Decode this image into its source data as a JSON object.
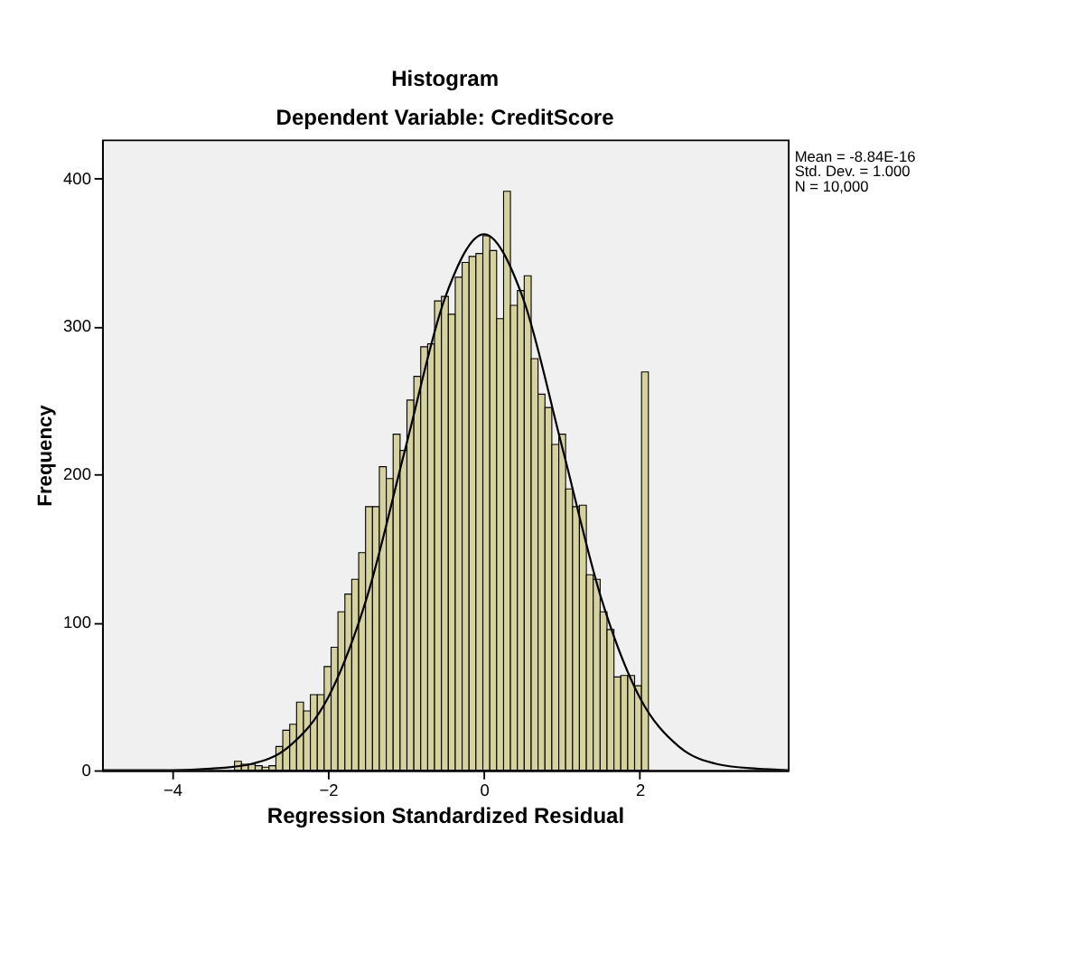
{
  "chart_data": {
    "type": "histogram",
    "title": "Histogram",
    "subtitle": "Dependent Variable: CreditScore",
    "xlabel": "Regression Standardized Residual",
    "ylabel": "Frequency",
    "bins": [
      -3.2,
      -3.112,
      -3.023,
      -2.935,
      -2.846,
      -2.758,
      -2.669,
      -2.581,
      -2.492,
      -2.404,
      -2.315,
      -2.227,
      -2.138,
      -2.05,
      -1.961,
      -1.873,
      -1.784,
      -1.696,
      -1.607,
      -1.519,
      -1.43,
      -1.342,
      -1.253,
      -1.165,
      -1.076,
      -0.988,
      -0.899,
      -0.811,
      -0.722,
      -0.634,
      -0.545,
      -0.457,
      -0.368,
      -0.28,
      -0.191,
      -0.103,
      -0.014,
      0.075,
      0.163,
      0.252,
      0.34,
      0.429,
      0.517,
      0.606,
      0.694,
      0.783,
      0.871,
      0.96,
      1.048,
      1.137,
      1.225,
      1.314,
      1.402,
      1.491,
      1.579,
      1.668,
      1.756,
      1.845,
      1.933,
      2.022,
      2.11
    ],
    "values": [
      6,
      4,
      4,
      3,
      2,
      3,
      16,
      27,
      31,
      46,
      40,
      51,
      51,
      70,
      83,
      107,
      119,
      129,
      147,
      178,
      178,
      205,
      197,
      227,
      216,
      250,
      266,
      286,
      288,
      317,
      320,
      308,
      333,
      343,
      347,
      349,
      361,
      351,
      305,
      391,
      314,
      324,
      334,
      278,
      254,
      245,
      220,
      227,
      190,
      178,
      179,
      132,
      129,
      107,
      95,
      63,
      64,
      64,
      57,
      269
    ],
    "color": "#d6d29c",
    "series": [
      {
        "type": "line",
        "color": "#000000",
        "x": [
          -4.9,
          -4,
          -3.5,
          -3,
          -2.5,
          -2,
          -1.5,
          -1,
          -0.5,
          0,
          0.5,
          1,
          1.5,
          2,
          2.5,
          3,
          3.5,
          3.9
        ],
        "values": [
          0,
          0,
          1,
          4,
          16,
          49,
          117,
          219,
          319,
          362,
          319,
          219,
          117,
          49,
          16,
          4,
          1,
          0
        ]
      }
    ],
    "xlim": [
      -4.9,
      3.9
    ],
    "xticks": [
      -4,
      -2,
      0,
      2
    ],
    "ylim": [
      0,
      426
    ],
    "yticks": [
      0,
      100,
      200,
      300,
      400
    ],
    "grid": false,
    "annotations": [
      "Mean = -8.84E-16",
      "Std. Dev. = 1.000",
      "N = 10,000"
    ]
  }
}
